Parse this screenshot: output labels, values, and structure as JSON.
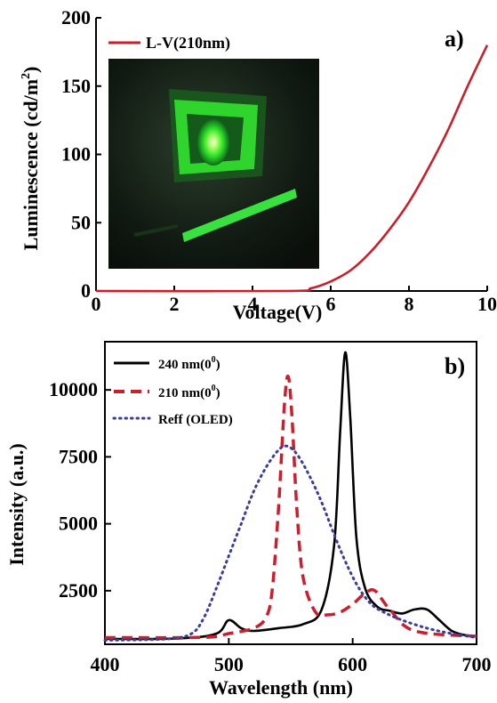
{
  "chart_data": [
    {
      "type": "line",
      "panel_label": "a)",
      "xlabel": "Voltage(V)",
      "ylabel": "Luminescence (cd/m",
      "ylabel_sup": "2",
      "ylabel_close": ")",
      "xlim": [
        0,
        10
      ],
      "ylim": [
        0,
        200
      ],
      "xticks": [
        "0",
        "2",
        "4",
        "6",
        "8",
        "10"
      ],
      "yticks": [
        "0",
        "50",
        "100",
        "150",
        "200"
      ],
      "legend_position": "top-left",
      "inset": "photo of glowing green device",
      "series": [
        {
          "name": "L-V(210nm)",
          "color": "#c8202a",
          "style": "solid",
          "x": [
            0,
            4.9,
            5.5,
            6.0,
            6.5,
            7.0,
            7.5,
            8.0,
            8.5,
            9.0,
            9.5,
            10.0
          ],
          "y": [
            0,
            0,
            2,
            7,
            15,
            28,
            45,
            65,
            90,
            118,
            150,
            180
          ]
        }
      ]
    },
    {
      "type": "line",
      "panel_label": "b)",
      "xlabel": "Wavelength (nm)",
      "ylabel": "Intensity (a.u.)",
      "xlim": [
        400,
        700
      ],
      "ylim": [
        500,
        11800
      ],
      "xticks": [
        "400",
        "500",
        "600",
        "700"
      ],
      "yticks": [
        "2500",
        "5000",
        "7500",
        "10000"
      ],
      "legend_position": "top-left",
      "series": [
        {
          "name": "240 nm(0",
          "name_sup": "0",
          "name_close": ")",
          "color": "#000000",
          "style": "solid",
          "x": [
            400,
            460,
            490,
            500,
            510,
            520,
            540,
            560,
            575,
            585,
            590,
            594,
            598,
            603,
            610,
            620,
            630,
            640,
            650,
            660,
            670,
            680,
            690,
            700
          ],
          "y": [
            700,
            720,
            900,
            1400,
            1100,
            1000,
            1100,
            1250,
            1800,
            4200,
            8500,
            11400,
            9000,
            4500,
            2600,
            1900,
            1750,
            1650,
            1800,
            1800,
            1400,
            1000,
            850,
            800
          ]
        },
        {
          "name": "210 nm(0",
          "name_sup": "0",
          "name_close": ")",
          "color": "#cc1f2e",
          "style": "dashed",
          "x": [
            400,
            480,
            500,
            520,
            530,
            535,
            540,
            545,
            548,
            551,
            555,
            560,
            570,
            580,
            590,
            600,
            610,
            618,
            630,
            650,
            700
          ],
          "y": [
            750,
            760,
            900,
            1100,
            1500,
            2500,
            5500,
            9500,
            10500,
            9000,
            5500,
            3000,
            1700,
            1600,
            1700,
            2000,
            2400,
            2500,
            1800,
            1000,
            800
          ]
        },
        {
          "name": "Reff (OLED)",
          "color": "#3a3d9a",
          "style": "dotted",
          "x": [
            400,
            450,
            470,
            480,
            490,
            500,
            510,
            520,
            530,
            540,
            547,
            555,
            565,
            575,
            585,
            595,
            605,
            615,
            625,
            640,
            660,
            680,
            700
          ],
          "y": [
            650,
            700,
            900,
            1500,
            2600,
            3800,
            5000,
            6200,
            7100,
            7750,
            7900,
            7600,
            6800,
            5800,
            4600,
            3500,
            2600,
            2000,
            1700,
            1400,
            1100,
            900,
            750
          ]
        }
      ]
    }
  ]
}
